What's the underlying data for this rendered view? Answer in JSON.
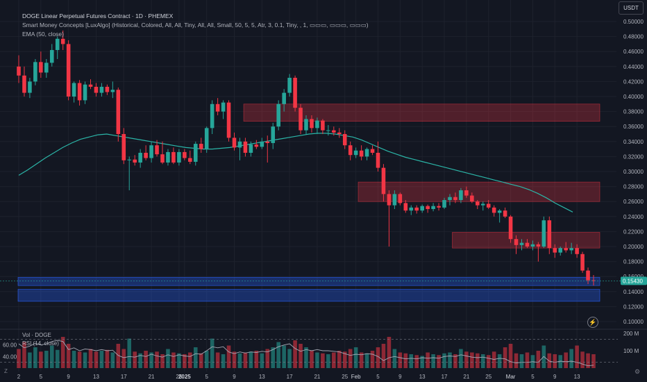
{
  "header": {
    "title": "DOGE Linear Perpetual Futures Contract · 1D · PHEMEX",
    "indicator1": "Smart Money Concepts [LuxAlgo] (Historical, Colored, All, All, Tiny, All, All, Small, 50, 5, 5, Atr, 3, 0.1, Tiny, , 1, ▭▭▭, ▭▭▭, ▭▭▭)",
    "indicator2": "EMA (50, close)"
  },
  "currency": "USDT",
  "volume_label": "Vol · DOGE",
  "rsi_label": "RSI (14, close)",
  "icons": {
    "z": "z-icon",
    "lightning": "lightning-icon",
    "settings": "settings-icon"
  },
  "colors": {
    "up": "#26a69a",
    "down": "#f23645",
    "ema": "#2bb6a8",
    "ob_bear": "#f23645",
    "ob_bull": "#2962ff",
    "price_tag": "#26a69a"
  },
  "chart_data": {
    "type": "candlestick",
    "symbol": "DOGE Linear Perpetual Futures Contract",
    "interval": "1D",
    "exchange": "PHEMEX",
    "price_axis": {
      "ticks": [
        "0.50000",
        "0.48000",
        "0.46000",
        "0.44000",
        "0.42000",
        "0.40000",
        "0.38000",
        "0.36000",
        "0.34000",
        "0.32000",
        "0.30000",
        "0.28000",
        "0.26000",
        "0.24000",
        "0.22000",
        "0.20000",
        "0.18000",
        "0.16000",
        "0.14000",
        "0.12000",
        "0.10000"
      ],
      "range": [
        0.1,
        0.5
      ]
    },
    "current_price": "0.15430",
    "x_axis_labels": [
      "2",
      "5",
      "9",
      "13",
      "17",
      "21",
      "25",
      "2025",
      "5",
      "9",
      "13",
      "17",
      "21",
      "25",
      "Feb",
      "5",
      "9",
      "13",
      "17",
      "21",
      "25",
      "Mar",
      "5",
      "9",
      "13"
    ],
    "candles": [
      [
        0.44,
        0.455,
        0.418,
        0.428
      ],
      [
        0.428,
        0.44,
        0.4,
        0.405
      ],
      [
        0.405,
        0.425,
        0.398,
        0.42
      ],
      [
        0.42,
        0.45,
        0.415,
        0.446
      ],
      [
        0.446,
        0.46,
        0.425,
        0.432
      ],
      [
        0.432,
        0.45,
        0.425,
        0.445
      ],
      [
        0.445,
        0.47,
        0.44,
        0.462
      ],
      [
        0.462,
        0.48,
        0.45,
        0.477
      ],
      [
        0.477,
        0.488,
        0.462,
        0.47
      ],
      [
        0.47,
        0.475,
        0.395,
        0.4
      ],
      [
        0.4,
        0.42,
        0.392,
        0.418
      ],
      [
        0.418,
        0.422,
        0.388,
        0.395
      ],
      [
        0.395,
        0.42,
        0.39,
        0.416
      ],
      [
        0.416,
        0.423,
        0.41,
        0.413
      ],
      [
        0.413,
        0.418,
        0.4,
        0.405
      ],
      [
        0.405,
        0.418,
        0.4,
        0.413
      ],
      [
        0.413,
        0.416,
        0.402,
        0.406
      ],
      [
        0.406,
        0.42,
        0.398,
        0.409
      ],
      [
        0.409,
        0.412,
        0.34,
        0.35
      ],
      [
        0.35,
        0.358,
        0.31,
        0.315
      ],
      [
        0.315,
        0.32,
        0.275,
        0.316
      ],
      [
        0.316,
        0.322,
        0.308,
        0.312
      ],
      [
        0.312,
        0.33,
        0.305,
        0.325
      ],
      [
        0.325,
        0.335,
        0.315,
        0.318
      ],
      [
        0.318,
        0.34,
        0.312,
        0.335
      ],
      [
        0.335,
        0.342,
        0.32,
        0.323
      ],
      [
        0.323,
        0.34,
        0.31,
        0.312
      ],
      [
        0.312,
        0.33,
        0.308,
        0.326
      ],
      [
        0.326,
        0.332,
        0.31,
        0.312
      ],
      [
        0.312,
        0.33,
        0.308,
        0.326
      ],
      [
        0.326,
        0.33,
        0.315,
        0.318
      ],
      [
        0.318,
        0.328,
        0.31,
        0.313
      ],
      [
        0.313,
        0.34,
        0.308,
        0.337
      ],
      [
        0.337,
        0.345,
        0.325,
        0.33
      ],
      [
        0.33,
        0.36,
        0.325,
        0.358
      ],
      [
        0.358,
        0.395,
        0.35,
        0.39
      ],
      [
        0.39,
        0.398,
        0.375,
        0.38
      ],
      [
        0.38,
        0.395,
        0.37,
        0.392
      ],
      [
        0.392,
        0.395,
        0.34,
        0.345
      ],
      [
        0.345,
        0.352,
        0.328,
        0.332
      ],
      [
        0.332,
        0.345,
        0.315,
        0.34
      ],
      [
        0.34,
        0.345,
        0.32,
        0.325
      ],
      [
        0.325,
        0.34,
        0.32,
        0.336
      ],
      [
        0.336,
        0.342,
        0.33,
        0.333
      ],
      [
        0.333,
        0.345,
        0.33,
        0.34
      ],
      [
        0.34,
        0.348,
        0.312,
        0.338
      ],
      [
        0.338,
        0.365,
        0.33,
        0.36
      ],
      [
        0.36,
        0.395,
        0.355,
        0.39
      ],
      [
        0.39,
        0.41,
        0.38,
        0.405
      ],
      [
        0.405,
        0.43,
        0.4,
        0.425
      ],
      [
        0.425,
        0.428,
        0.38,
        0.385
      ],
      [
        0.385,
        0.39,
        0.35,
        0.355
      ],
      [
        0.355,
        0.375,
        0.35,
        0.37
      ],
      [
        0.37,
        0.375,
        0.352,
        0.358
      ],
      [
        0.358,
        0.372,
        0.35,
        0.368
      ],
      [
        0.368,
        0.37,
        0.35,
        0.355
      ],
      [
        0.355,
        0.362,
        0.348,
        0.355
      ],
      [
        0.355,
        0.36,
        0.348,
        0.352
      ],
      [
        0.352,
        0.358,
        0.345,
        0.35
      ],
      [
        0.35,
        0.355,
        0.33,
        0.335
      ],
      [
        0.335,
        0.34,
        0.315,
        0.322
      ],
      [
        0.322,
        0.332,
        0.318,
        0.328
      ],
      [
        0.328,
        0.335,
        0.315,
        0.32
      ],
      [
        0.32,
        0.332,
        0.315,
        0.33
      ],
      [
        0.33,
        0.335,
        0.322,
        0.325
      ],
      [
        0.325,
        0.34,
        0.3,
        0.305
      ],
      [
        0.305,
        0.31,
        0.26,
        0.27
      ],
      [
        0.27,
        0.275,
        0.2,
        0.255
      ],
      [
        0.255,
        0.275,
        0.25,
        0.27
      ],
      [
        0.27,
        0.272,
        0.255,
        0.258
      ],
      [
        0.258,
        0.262,
        0.245,
        0.248
      ],
      [
        0.248,
        0.255,
        0.242,
        0.252
      ],
      [
        0.252,
        0.255,
        0.244,
        0.248
      ],
      [
        0.248,
        0.256,
        0.245,
        0.254
      ],
      [
        0.254,
        0.256,
        0.245,
        0.25
      ],
      [
        0.25,
        0.258,
        0.247,
        0.254
      ],
      [
        0.254,
        0.258,
        0.248,
        0.252
      ],
      [
        0.252,
        0.265,
        0.25,
        0.262
      ],
      [
        0.262,
        0.27,
        0.255,
        0.266
      ],
      [
        0.266,
        0.272,
        0.258,
        0.262
      ],
      [
        0.262,
        0.278,
        0.258,
        0.275
      ],
      [
        0.275,
        0.28,
        0.265,
        0.268
      ],
      [
        0.268,
        0.272,
        0.258,
        0.26
      ],
      [
        0.26,
        0.262,
        0.25,
        0.255
      ],
      [
        0.255,
        0.26,
        0.248,
        0.257
      ],
      [
        0.257,
        0.262,
        0.25,
        0.252
      ],
      [
        0.252,
        0.255,
        0.24,
        0.245
      ],
      [
        0.245,
        0.25,
        0.232,
        0.248
      ],
      [
        0.248,
        0.252,
        0.238,
        0.24
      ],
      [
        0.24,
        0.242,
        0.205,
        0.21
      ],
      [
        0.21,
        0.215,
        0.19,
        0.202
      ],
      [
        0.202,
        0.21,
        0.195,
        0.205
      ],
      [
        0.205,
        0.21,
        0.198,
        0.2
      ],
      [
        0.2,
        0.208,
        0.195,
        0.203
      ],
      [
        0.203,
        0.206,
        0.18,
        0.2
      ],
      [
        0.2,
        0.24,
        0.198,
        0.235
      ],
      [
        0.235,
        0.24,
        0.19,
        0.198
      ],
      [
        0.198,
        0.203,
        0.185,
        0.192
      ],
      [
        0.192,
        0.2,
        0.188,
        0.198
      ],
      [
        0.198,
        0.206,
        0.192,
        0.195
      ],
      [
        0.195,
        0.205,
        0.19,
        0.198
      ],
      [
        0.198,
        0.203,
        0.185,
        0.19
      ],
      [
        0.19,
        0.193,
        0.165,
        0.168
      ],
      [
        0.168,
        0.172,
        0.15,
        0.155
      ],
      [
        0.155,
        0.162,
        0.148,
        0.1543
      ]
    ],
    "ema50": [
      0.295,
      0.302,
      0.31,
      0.318,
      0.325,
      0.332,
      0.338,
      0.343,
      0.346,
      0.349,
      0.35,
      0.348,
      0.346,
      0.344,
      0.342,
      0.34,
      0.338,
      0.336,
      0.334,
      0.332,
      0.331,
      0.33,
      0.33,
      0.331,
      0.332,
      0.334,
      0.336,
      0.338,
      0.34,
      0.342,
      0.344,
      0.346,
      0.348,
      0.35,
      0.351,
      0.351,
      0.35,
      0.348,
      0.346,
      0.342,
      0.337,
      0.332,
      0.327,
      0.323,
      0.319,
      0.316,
      0.313,
      0.31,
      0.307,
      0.304,
      0.301,
      0.298,
      0.295,
      0.292,
      0.289,
      0.286,
      0.283,
      0.28,
      0.276,
      0.271,
      0.265,
      0.258,
      0.252,
      0.246
    ],
    "order_blocks": [
      {
        "kind": "bearish",
        "price_top": 0.39,
        "price_bottom": 0.367
      },
      {
        "kind": "bearish",
        "price_top": 0.286,
        "price_bottom": 0.26
      },
      {
        "kind": "bearish",
        "price_top": 0.219,
        "price_bottom": 0.198
      },
      {
        "kind": "bullish",
        "price_top": 0.159,
        "price_bottom": 0.148
      },
      {
        "kind": "bullish",
        "price_top": 0.143,
        "price_bottom": 0.127
      }
    ],
    "volume": {
      "axis_labels": [
        "200 M",
        "100 M"
      ],
      "values": [
        110,
        150,
        90,
        120,
        95,
        100,
        130,
        105,
        180,
        140,
        100,
        95,
        90,
        110,
        95,
        100,
        105,
        90,
        140,
        110,
        170,
        95,
        85,
        100,
        90,
        95,
        80,
        110,
        90,
        85,
        80,
        90,
        120,
        85,
        100,
        170,
        90,
        80,
        130,
        95,
        85,
        90,
        95,
        100,
        85,
        110,
        120,
        150,
        130,
        110,
        160,
        140,
        120,
        100,
        90,
        85,
        80,
        90,
        100,
        95,
        110,
        120,
        90,
        85,
        100,
        120,
        140,
        180,
        110,
        90,
        85,
        80,
        75,
        70,
        90,
        80,
        75,
        85,
        90,
        80,
        110,
        95,
        90,
        85,
        80,
        75,
        95,
        80,
        120,
        140,
        85,
        80,
        90,
        75,
        100,
        130,
        85,
        80,
        75,
        90,
        110,
        130,
        95,
        85,
        80
      ]
    },
    "rsi": {
      "axis_labels": [
        "60.00",
        "40.00"
      ],
      "values": [
        62,
        55,
        58,
        63,
        60,
        62,
        66,
        68,
        66,
        52,
        55,
        50,
        53,
        52,
        50,
        52,
        50,
        51,
        42,
        38,
        40,
        39,
        42,
        40,
        44,
        41,
        39,
        43,
        40,
        43,
        41,
        40,
        45,
        44,
        50,
        57,
        55,
        57,
        48,
        45,
        48,
        46,
        48,
        47,
        49,
        48,
        52,
        57,
        60,
        62,
        54,
        49,
        52,
        50,
        52,
        50,
        50,
        49,
        48,
        45,
        42,
        44,
        43,
        45,
        44,
        40,
        33,
        38,
        40,
        38,
        36,
        37,
        36,
        38,
        37,
        38,
        37,
        40,
        41,
        40,
        43,
        41,
        39,
        38,
        39,
        37,
        35,
        37,
        36,
        31,
        29,
        30,
        30,
        31,
        30,
        40,
        32,
        30,
        32,
        31,
        32,
        30,
        27,
        24,
        25
      ]
    }
  }
}
